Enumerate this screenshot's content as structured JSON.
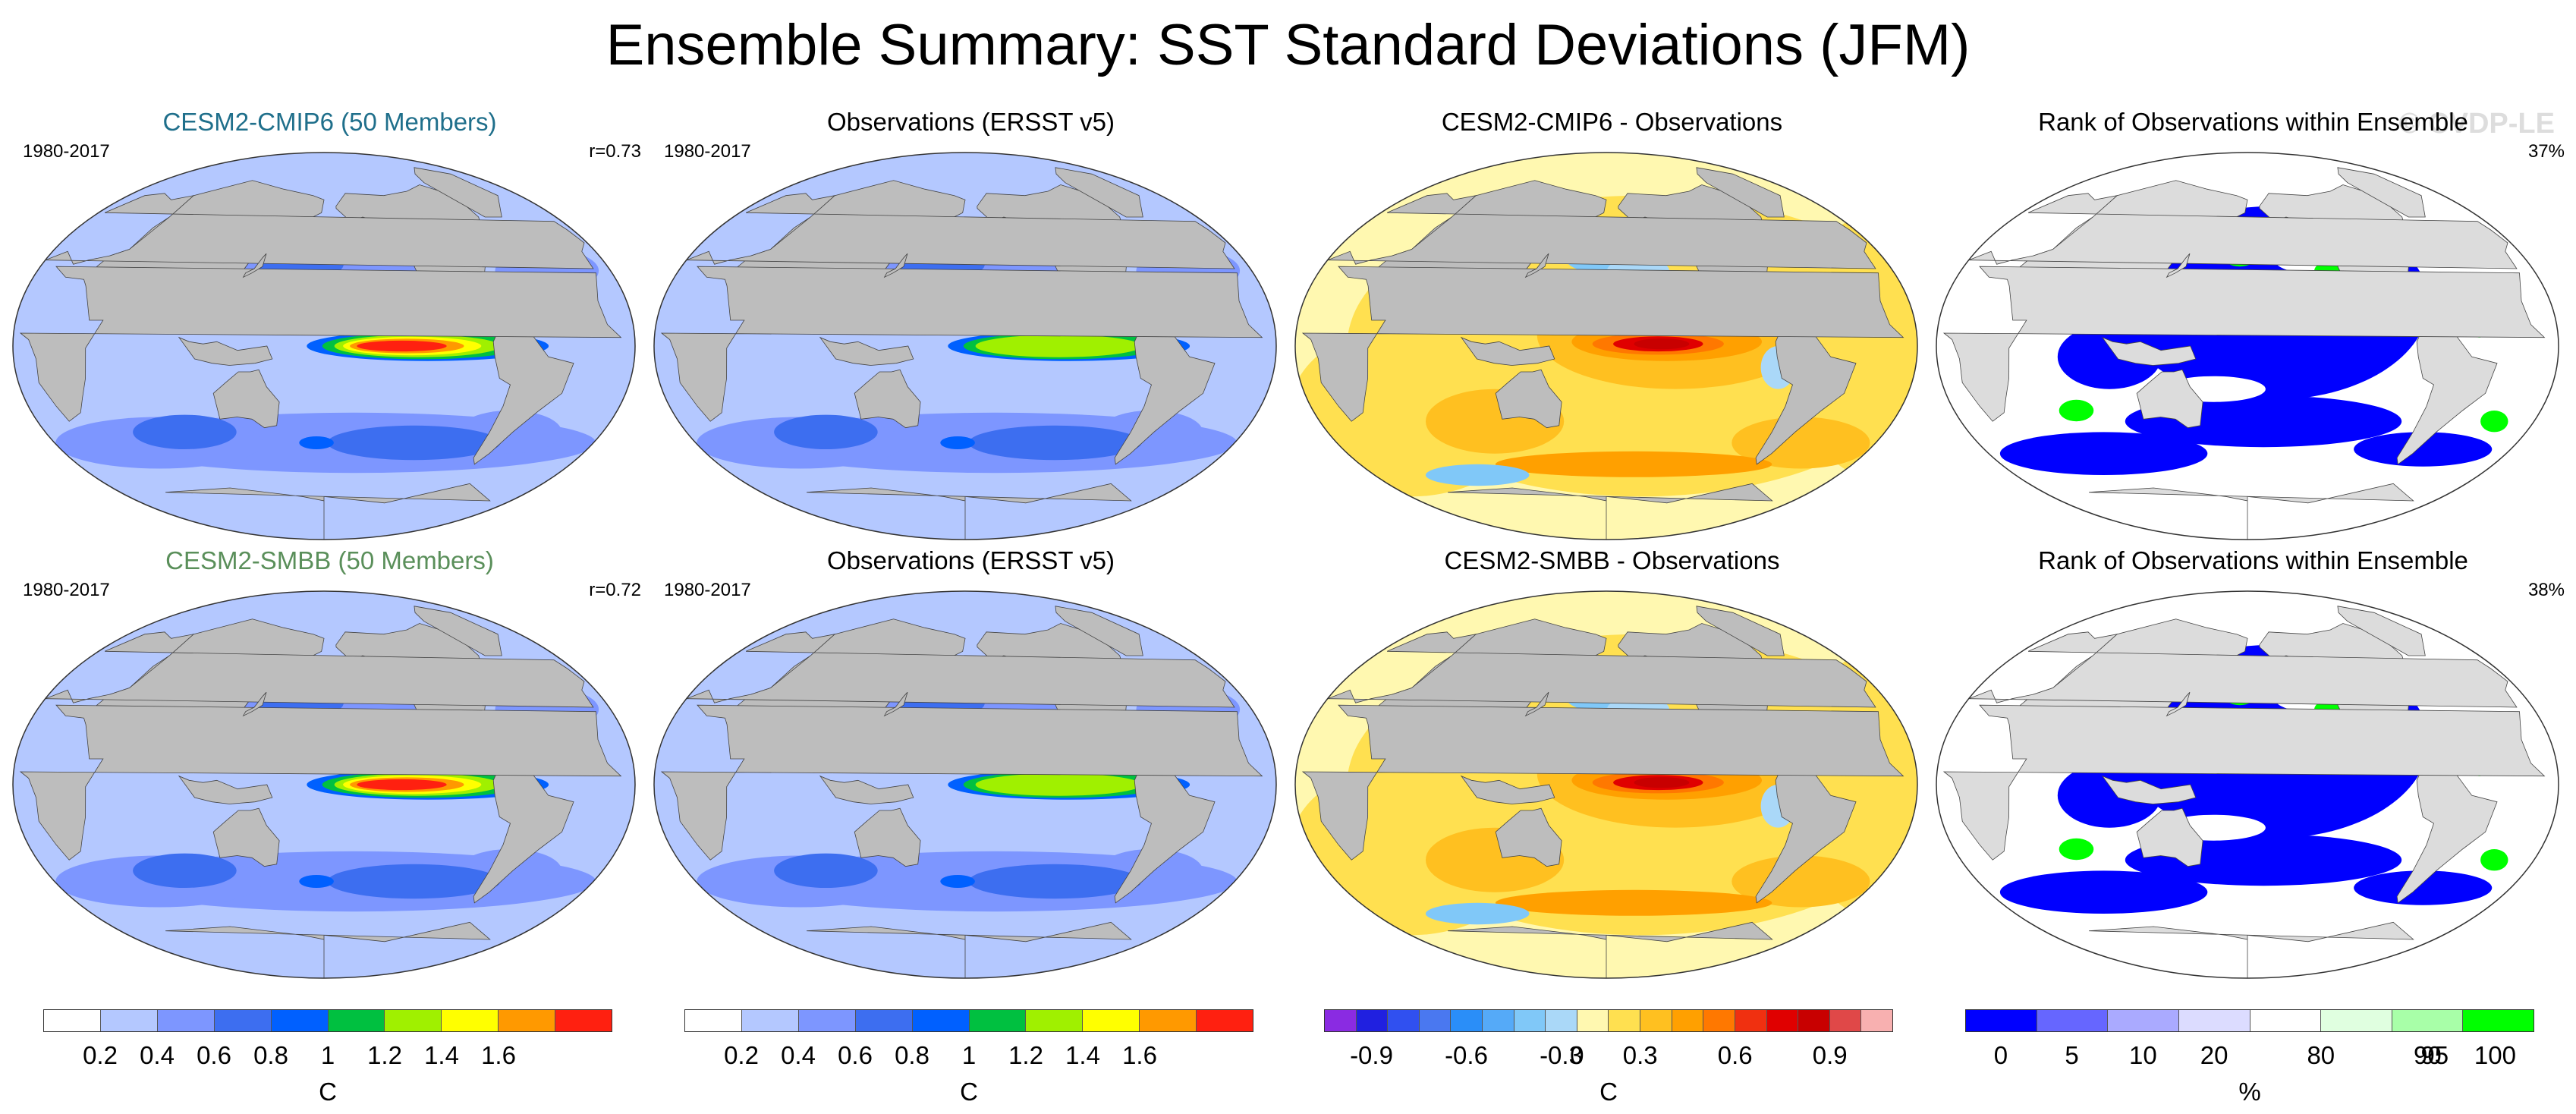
{
  "figure_title": "Ensemble Summary: SST Standard Deviations (JFM)",
  "watermark": "© CVDP-LE",
  "chart_data": [
    {
      "type": "heatmap",
      "row": 1,
      "title": "CESM2-CMIP6 (50 Members)",
      "title_color": "#1f6f8b",
      "period": "1980-2017",
      "stat": "r=0.73",
      "field": "sst_std",
      "peak": 1.7,
      "colorbar": "std"
    },
    {
      "type": "heatmap",
      "row": 1,
      "title": "Observations (ERSST v5)",
      "title_color": "#000000",
      "period": "1980-2017",
      "stat": "",
      "field": "sst_std",
      "peak": 1.15,
      "colorbar": "std"
    },
    {
      "type": "heatmap",
      "row": 1,
      "title": "CESM2-CMIP6 - Observations",
      "title_color": "#000000",
      "period": "",
      "stat": "",
      "field": "difference",
      "peak": 1.0,
      "colorbar": "diff"
    },
    {
      "type": "heatmap",
      "row": 1,
      "title": "Rank of Observations within Ensemble",
      "title_color": "#000000",
      "period": "",
      "stat": "37%",
      "field": "rank",
      "colorbar": "rank"
    },
    {
      "type": "heatmap",
      "row": 2,
      "title": "CESM2-SMBB (50 Members)",
      "title_color": "#5a8f5a",
      "period": "1980-2017",
      "stat": "r=0.72",
      "field": "sst_std",
      "peak": 1.75,
      "colorbar": "std"
    },
    {
      "type": "heatmap",
      "row": 2,
      "title": "Observations (ERSST v5)",
      "title_color": "#000000",
      "period": "1980-2017",
      "stat": "",
      "field": "sst_std",
      "peak": 1.15,
      "colorbar": "std"
    },
    {
      "type": "heatmap",
      "row": 2,
      "title": "CESM2-SMBB - Observations",
      "title_color": "#000000",
      "period": "",
      "stat": "",
      "field": "difference",
      "peak": 1.0,
      "colorbar": "diff"
    },
    {
      "type": "heatmap",
      "row": 2,
      "title": "Rank of Observations within Ensemble",
      "title_color": "#000000",
      "period": "",
      "stat": "38%",
      "field": "rank",
      "colorbar": "rank"
    }
  ],
  "colorbars": [
    {
      "id": "std",
      "colors": [
        "#ffffff",
        "#b4c8ff",
        "#7d96ff",
        "#3d6ef0",
        "#0060ff",
        "#00c040",
        "#a0f000",
        "#ffff00",
        "#ff9900",
        "#ff2010"
      ],
      "labels": [
        "0.2",
        "0.4",
        "0.6",
        "0.8",
        "1",
        "1.2",
        "1.4",
        "1.6"
      ],
      "unit": "C"
    },
    {
      "id": "std",
      "colors": [
        "#ffffff",
        "#b4c8ff",
        "#7d96ff",
        "#3d6ef0",
        "#0060ff",
        "#00c040",
        "#a0f000",
        "#ffff00",
        "#ff9900",
        "#ff2010"
      ],
      "labels": [
        "0.2",
        "0.4",
        "0.6",
        "0.8",
        "1",
        "1.2",
        "1.4",
        "1.6"
      ],
      "unit": "C"
    },
    {
      "id": "diff",
      "colors": [
        "#8a2be2",
        "#2020e0",
        "#3050f0",
        "#4a78f0",
        "#2a8ef8",
        "#55aaf8",
        "#80c8f8",
        "#aad8f8",
        "#fff8b0",
        "#ffe050",
        "#ffc020",
        "#ffa000",
        "#ff7800",
        "#f03010",
        "#e00000",
        "#c80000",
        "#e04848",
        "#f8b0b0"
      ],
      "labels": [
        "-0.9",
        "-0.6",
        "-0.3",
        "0",
        "0.3",
        "0.6",
        "0.9"
      ],
      "unit": "C"
    },
    {
      "id": "rank",
      "colors": [
        "#0000ff",
        "#6666ff",
        "#aaaaff",
        "#dcdcff",
        "#ffffff",
        "#e0ffe0",
        "#a8ffa8",
        "#00ff00"
      ],
      "labels": [
        "0",
        "5",
        "10",
        "20",
        "80",
        "90",
        "95",
        "100"
      ],
      "unit": "%"
    }
  ]
}
